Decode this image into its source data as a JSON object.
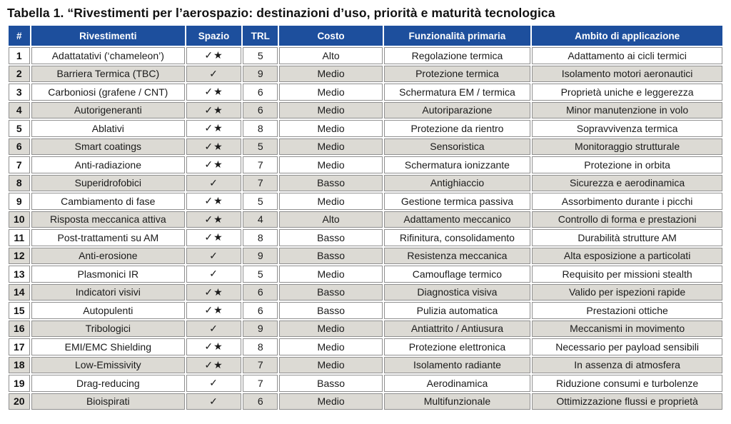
{
  "title": "Tabella 1. “Rivestimenti per l’aerospazio: destinazioni d’uso, priorità e maturità tecnologica",
  "colors": {
    "header_bg": "#1d4f9d",
    "header_text": "#ffffff",
    "row_alt_bg": "#dcdad4",
    "row_bg": "#ffffff",
    "cell_border": "#8f8f8f",
    "body_text": "#1a1a1a"
  },
  "icons": {
    "check": "check-icon ✓",
    "check_star": "check-star-icon ✓★"
  },
  "table": {
    "columns": [
      "#",
      "Rivestimenti",
      "Spazio",
      "TRL",
      "Costo",
      "Funzionalità primaria",
      "Ambito di applicazione"
    ],
    "rows": [
      [
        "1",
        "Adattatativi (‘chameleon’)",
        "✓★",
        "5",
        "Alto",
        "Regolazione termica",
        "Adattamento ai cicli termici"
      ],
      [
        "2",
        "Barriera Termica (TBC)",
        "✓",
        "9",
        "Medio",
        "Protezione termica",
        "Isolamento motori aeronautici"
      ],
      [
        "3",
        "Carboniosi (grafene / CNT)",
        "✓★",
        "6",
        "Medio",
        "Schermatura EM / termica",
        "Proprietà uniche e leggerezza"
      ],
      [
        "4",
        "Autorigeneranti",
        "✓★",
        "6",
        "Medio",
        "Autoriparazione",
        "Minor manutenzione in volo"
      ],
      [
        "5",
        "Ablativi",
        "✓★",
        "8",
        "Medio",
        "Protezione da rientro",
        "Sopravvivenza termica"
      ],
      [
        "6",
        "Smart coatings",
        "✓★",
        "5",
        "Medio",
        "Sensoristica",
        "Monitoraggio strutturale"
      ],
      [
        "7",
        "Anti-radiazione",
        "✓★",
        "7",
        "Medio",
        "Schermatura ionizzante",
        "Protezione in orbita"
      ],
      [
        "8",
        "Superidrofobici",
        "✓",
        "7",
        "Basso",
        "Antighiaccio",
        "Sicurezza e aerodinamica"
      ],
      [
        "9",
        "Cambiamento di fase",
        "✓★",
        "5",
        "Medio",
        "Gestione termica passiva",
        "Assorbimento durante i picchi"
      ],
      [
        "10",
        "Risposta meccanica attiva",
        "✓★",
        "4",
        "Alto",
        "Adattamento meccanico",
        "Controllo di forma e prestazioni"
      ],
      [
        "11",
        "Post-trattamenti su AM",
        "✓★",
        "8",
        "Basso",
        "Rifinitura, consolidamento",
        "Durabilità strutture AM"
      ],
      [
        "12",
        "Anti-erosione",
        "✓",
        "9",
        "Basso",
        "Resistenza meccanica",
        "Alta esposizione a particolati"
      ],
      [
        "13",
        "Plasmonici IR",
        "✓",
        "5",
        "Medio",
        "Camouflage termico",
        "Requisito per missioni stealth"
      ],
      [
        "14",
        "Indicatori visivi",
        "✓★",
        "6",
        "Basso",
        "Diagnostica visiva",
        "Valido per ispezioni rapide"
      ],
      [
        "15",
        "Autopulenti",
        "✓★",
        "6",
        "Basso",
        "Pulizia automatica",
        "Prestazioni ottiche"
      ],
      [
        "16",
        "Tribologici",
        "✓",
        "9",
        "Medio",
        "Antiattrito / Antiusura",
        "Meccanismi in movimento"
      ],
      [
        "17",
        "EMI/EMC Shielding",
        "✓★",
        "8",
        "Medio",
        "Protezione elettronica",
        "Necessario per payload sensibili"
      ],
      [
        "18",
        "Low-Emissivity",
        "✓★",
        "7",
        "Medio",
        "Isolamento radiante",
        "In assenza di atmosfera"
      ],
      [
        "19",
        "Drag-reducing",
        "✓",
        "7",
        "Basso",
        "Aerodinamica",
        "Riduzione consumi e turbolenze"
      ],
      [
        "20",
        "Bioispirati",
        "✓",
        "6",
        "Medio",
        "Multifunzionale",
        "Ottimizzazione flussi e proprietà"
      ]
    ]
  }
}
